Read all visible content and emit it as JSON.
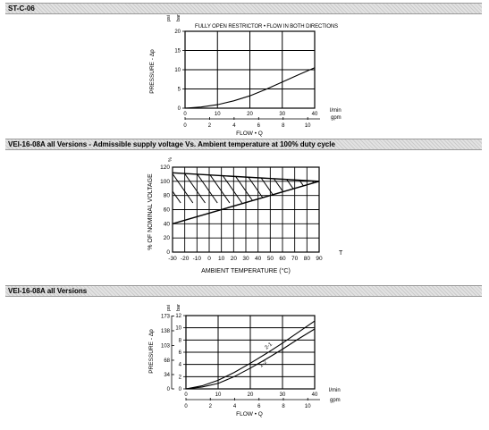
{
  "sections": [
    {
      "title": "ST-C-06"
    },
    {
      "title": "VEI-16-08A all Versions - Admissible supply voltage Vs. Ambient temperature at 100% duty cycle"
    },
    {
      "title": "VEI-16-08A all Versions"
    }
  ],
  "chart_data": [
    {
      "type": "line",
      "annotation": "FULLY OPEN RESTRICTOR • FLOW IN BOTH DIRECTIONS",
      "xlabel": "FLOW • Q",
      "ylabel": "PRESSURE - Δp",
      "x_unit": "l/min",
      "x2_unit": "gpm",
      "y_unit": "bar",
      "y2_unit": "psi",
      "xlim": [
        0,
        40
      ],
      "ylim": [
        0,
        20
      ],
      "x_ticks": [
        "0",
        "10",
        "20",
        "30",
        "40"
      ],
      "x2_ticks": [
        "0",
        "2",
        "4",
        "6",
        "8",
        "10"
      ],
      "y_ticks": [
        "0",
        "5",
        "10",
        "15",
        "20"
      ],
      "series": [
        {
          "x": [
            0,
            5,
            10,
            15,
            20,
            25,
            30,
            35,
            40
          ],
          "y": [
            0,
            0.3,
            0.9,
            1.9,
            3.2,
            4.9,
            6.8,
            8.7,
            10.5
          ]
        }
      ]
    },
    {
      "type": "area",
      "xlabel": "AMBIENT TEMPERATURE (°C)",
      "ylabel": "% OF NOMINAL VOLTAGE",
      "x_unit": "T",
      "y_unit": "%",
      "xlim": [
        -30,
        90
      ],
      "ylim": [
        0,
        120
      ],
      "x_ticks": [
        "-30",
        "-20",
        "-10",
        "0",
        "10",
        "20",
        "30",
        "40",
        "50",
        "60",
        "70",
        "80",
        "90"
      ],
      "y_ticks": [
        "0",
        "20",
        "40",
        "60",
        "80",
        "100",
        "120"
      ],
      "series": [
        {
          "x": [
            -30,
            90
          ],
          "y": [
            40,
            100
          ]
        },
        {
          "x": [
            -30,
            90
          ],
          "y": [
            112,
            100
          ]
        }
      ]
    },
    {
      "type": "line",
      "xlabel": "FLOW • Q",
      "ylabel": "PRESSURE - Δp",
      "x_unit": "l/min",
      "x2_unit": "gpm",
      "y_unit": "bar",
      "y2_unit": "psi",
      "xlim": [
        0,
        40
      ],
      "ylim": [
        0,
        12
      ],
      "x_ticks": [
        "0",
        "10",
        "20",
        "30",
        "40"
      ],
      "x2_ticks": [
        "0",
        "2",
        "4",
        "6",
        "8",
        "10"
      ],
      "y_ticks": [
        "0",
        "2",
        "4",
        "6",
        "8",
        "10",
        "12"
      ],
      "y2_ticks": [
        "0",
        "34",
        "68",
        "103",
        "138",
        "173"
      ],
      "series": [
        {
          "name": "2-1",
          "x": [
            0,
            5,
            10,
            15,
            20,
            25,
            30,
            35,
            40
          ],
          "y": [
            0,
            0.5,
            1.4,
            2.7,
            4.2,
            5.8,
            7.5,
            9.3,
            11.1
          ]
        },
        {
          "name": "1-2",
          "x": [
            0,
            5,
            10,
            15,
            20,
            25,
            30,
            35,
            40
          ],
          "y": [
            0,
            0.3,
            0.9,
            2.0,
            3.4,
            4.9,
            6.5,
            8.2,
            9.8
          ]
        }
      ]
    }
  ]
}
